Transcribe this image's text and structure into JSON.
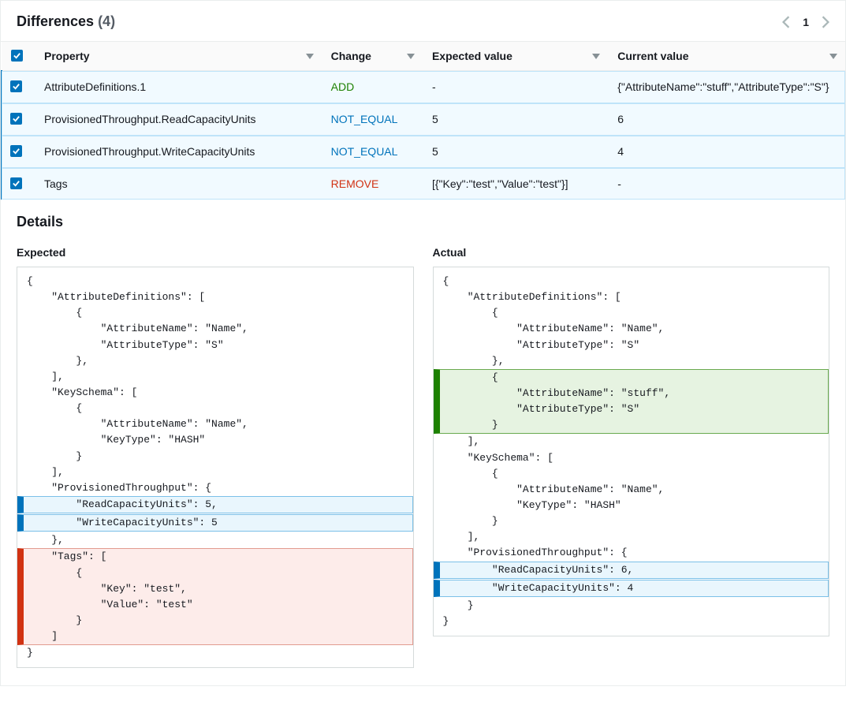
{
  "header": {
    "title": "Differences",
    "count": "(4)",
    "page": "1"
  },
  "columns": {
    "property": "Property",
    "change": "Change",
    "expected": "Expected value",
    "current": "Current value"
  },
  "rows": [
    {
      "selected": true,
      "property": "AttributeDefinitions.1",
      "change": "ADD",
      "expected": "-",
      "current": "{\"AttributeName\":\"stuff\",\"AttributeType\":\"S\"}"
    },
    {
      "selected": true,
      "property": "ProvisionedThroughput.ReadCapacityUnits",
      "change": "NOT_EQUAL",
      "expected": "5",
      "current": "6"
    },
    {
      "selected": true,
      "property": "ProvisionedThroughput.WriteCapacityUnits",
      "change": "NOT_EQUAL",
      "expected": "5",
      "current": "4"
    },
    {
      "selected": true,
      "property": "Tags",
      "change": "REMOVE",
      "expected": "[{\"Key\":\"test\",\"Value\":\"test\"}]",
      "current": "-"
    }
  ],
  "details": {
    "title": "Details",
    "expected_label": "Expected",
    "actual_label": "Actual",
    "expected_lines": [
      {
        "t": "{"
      },
      {
        "t": "    \"AttributeDefinitions\": ["
      },
      {
        "t": "        {"
      },
      {
        "t": "            \"AttributeName\": \"Name\","
      },
      {
        "t": "            \"AttributeType\": \"S\""
      },
      {
        "t": "        },"
      },
      {
        "t": ""
      },
      {
        "t": "    ],"
      },
      {
        "t": "    \"KeySchema\": ["
      },
      {
        "t": "        {"
      },
      {
        "t": "            \"AttributeName\": \"Name\","
      },
      {
        "t": "            \"KeyType\": \"HASH\""
      },
      {
        "t": "        }"
      },
      {
        "t": "    ],"
      },
      {
        "t": "    \"ProvisionedThroughput\": {"
      },
      {
        "t": "        \"ReadCapacityUnits\": 5,",
        "cls": "changed"
      },
      {
        "t": "        \"WriteCapacityUnits\": 5",
        "cls": "changed"
      },
      {
        "t": "    },"
      },
      {
        "t": "    \"Tags\": [",
        "cls": "removed"
      },
      {
        "t": "        {",
        "cls": "removed"
      },
      {
        "t": "            \"Key\": \"test\",",
        "cls": "removed"
      },
      {
        "t": "            \"Value\": \"test\"",
        "cls": "removed"
      },
      {
        "t": "        }",
        "cls": "removed"
      },
      {
        "t": "    ]",
        "cls": "removed"
      },
      {
        "t": "}"
      }
    ],
    "actual_lines": [
      {
        "t": "{"
      },
      {
        "t": "    \"AttributeDefinitions\": ["
      },
      {
        "t": "        {"
      },
      {
        "t": "            \"AttributeName\": \"Name\","
      },
      {
        "t": "            \"AttributeType\": \"S\""
      },
      {
        "t": "        },"
      },
      {
        "t": "        {",
        "cls": "added"
      },
      {
        "t": "            \"AttributeName\": \"stuff\",",
        "cls": "added"
      },
      {
        "t": "            \"AttributeType\": \"S\"",
        "cls": "added"
      },
      {
        "t": "        }",
        "cls": "added"
      },
      {
        "t": "    ],"
      },
      {
        "t": "    \"KeySchema\": ["
      },
      {
        "t": "        {"
      },
      {
        "t": "            \"AttributeName\": \"Name\","
      },
      {
        "t": "            \"KeyType\": \"HASH\""
      },
      {
        "t": "        }"
      },
      {
        "t": "    ],"
      },
      {
        "t": "    \"ProvisionedThroughput\": {"
      },
      {
        "t": "        \"ReadCapacityUnits\": 6,",
        "cls": "changed"
      },
      {
        "t": "        \"WriteCapacityUnits\": 4",
        "cls": "changed"
      },
      {
        "t": "    }"
      },
      {
        "t": "}"
      }
    ]
  },
  "colors": {
    "add": "#1d8102",
    "remove": "#d13212",
    "change": "#0073bb",
    "row_selected_bg": "#f1faff"
  }
}
